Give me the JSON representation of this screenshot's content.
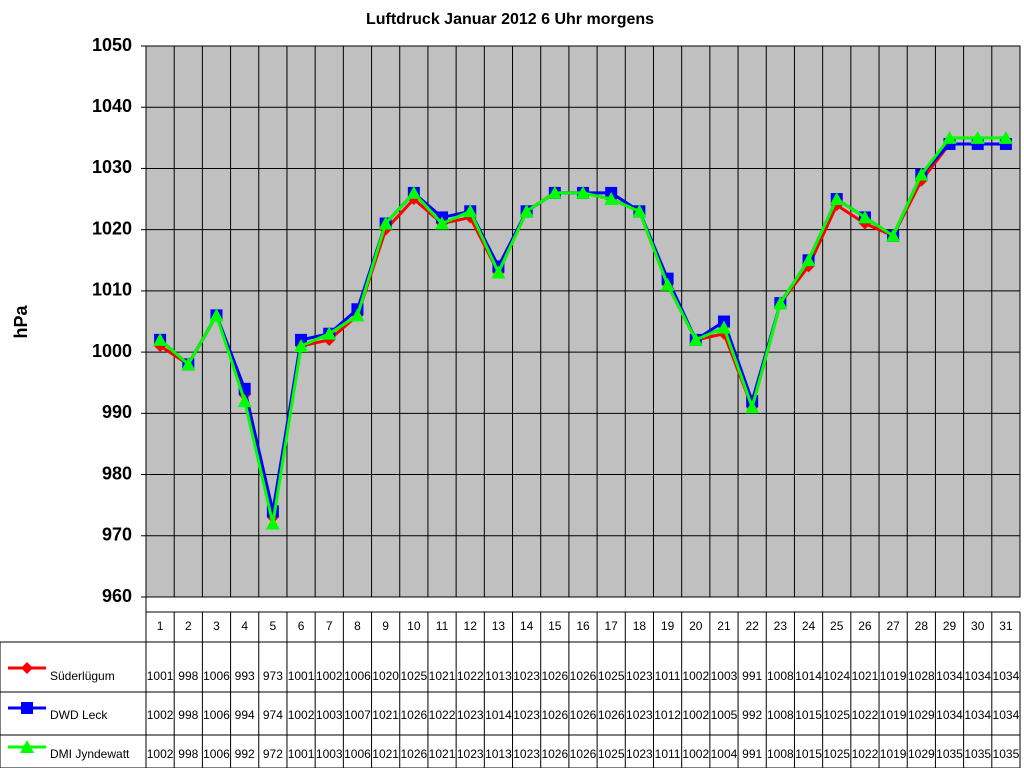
{
  "chart_data": {
    "type": "line",
    "title": "Luftdruck Januar 2012 6 Uhr morgens",
    "y_label": "hPa",
    "categories": [
      "1",
      "2",
      "3",
      "4",
      "5",
      "6",
      "7",
      "8",
      "9",
      "10",
      "11",
      "12",
      "13",
      "14",
      "15",
      "16",
      "17",
      "18",
      "19",
      "20",
      "21",
      "22",
      "23",
      "24",
      "25",
      "26",
      "27",
      "28",
      "29",
      "30",
      "31"
    ],
    "series": [
      {
        "name": "Süderlügum",
        "color": "#ff0000",
        "marker": "diamond",
        "values": [
          1001,
          998,
          1006,
          993,
          973,
          1001,
          1002,
          1006,
          1020,
          1025,
          1021,
          1022,
          1013,
          1023,
          1026,
          1026,
          1025,
          1023,
          1011,
          1002,
          1003,
          991,
          1008,
          1014,
          1024,
          1021,
          1019,
          1028,
          1034,
          1034,
          1034
        ]
      },
      {
        "name": "DWD Leck",
        "color": "#0000ff",
        "marker": "square",
        "values": [
          1002,
          998,
          1006,
          994,
          974,
          1002,
          1003,
          1007,
          1021,
          1026,
          1022,
          1023,
          1014,
          1023,
          1026,
          1026,
          1026,
          1023,
          1012,
          1002,
          1005,
          992,
          1008,
          1015,
          1025,
          1022,
          1019,
          1029,
          1034,
          1034,
          1034
        ]
      },
      {
        "name": "DMI Jyndewatt",
        "color": "#00ff00",
        "marker": "triangle",
        "values": [
          1002,
          998,
          1006,
          992,
          972,
          1001,
          1003,
          1006,
          1021,
          1026,
          1021,
          1023,
          1013,
          1023,
          1026,
          1026,
          1025,
          1023,
          1011,
          1002,
          1004,
          991,
          1008,
          1015,
          1025,
          1022,
          1019,
          1029,
          1035,
          1035,
          1035
        ]
      }
    ],
    "ylim": [
      960,
      1050
    ],
    "yticks": [
      960,
      970,
      980,
      990,
      1000,
      1010,
      1020,
      1030,
      1040,
      1050
    ],
    "grid": true,
    "plot_background": "#c0c0c0",
    "data_table": true
  }
}
